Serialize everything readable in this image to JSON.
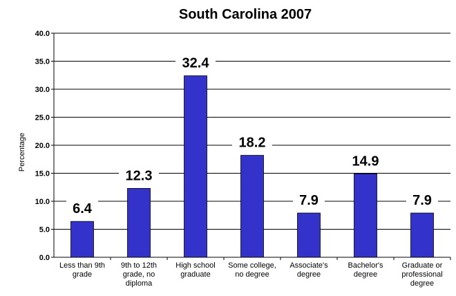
{
  "chart_data": {
    "type": "bar",
    "title": "South Carolina 2007",
    "xlabel": "",
    "ylabel": "Percentage",
    "ylim": [
      0,
      40
    ],
    "yticks": [
      "0.0",
      "5.0",
      "10.0",
      "15.0",
      "20.0",
      "25.0",
      "30.0",
      "35.0",
      "40.0"
    ],
    "grid": true,
    "bar_color": "#3333cc",
    "categories": [
      [
        "Less than 9th",
        "grade"
      ],
      [
        "9th to 12th",
        "grade, no",
        "diploma"
      ],
      [
        "High school",
        "graduate"
      ],
      [
        "Some college,",
        "no degree"
      ],
      [
        "Associate's",
        "degree"
      ],
      [
        "Bachelor's",
        "degree"
      ],
      [
        "Graduate or",
        "professional",
        "degree"
      ]
    ],
    "values": [
      6.4,
      12.3,
      32.4,
      18.2,
      7.9,
      14.9,
      7.9
    ],
    "value_labels": [
      "6.4",
      "12.3",
      "32.4",
      "18.2",
      "7.9",
      "14.9",
      "7.9"
    ]
  }
}
